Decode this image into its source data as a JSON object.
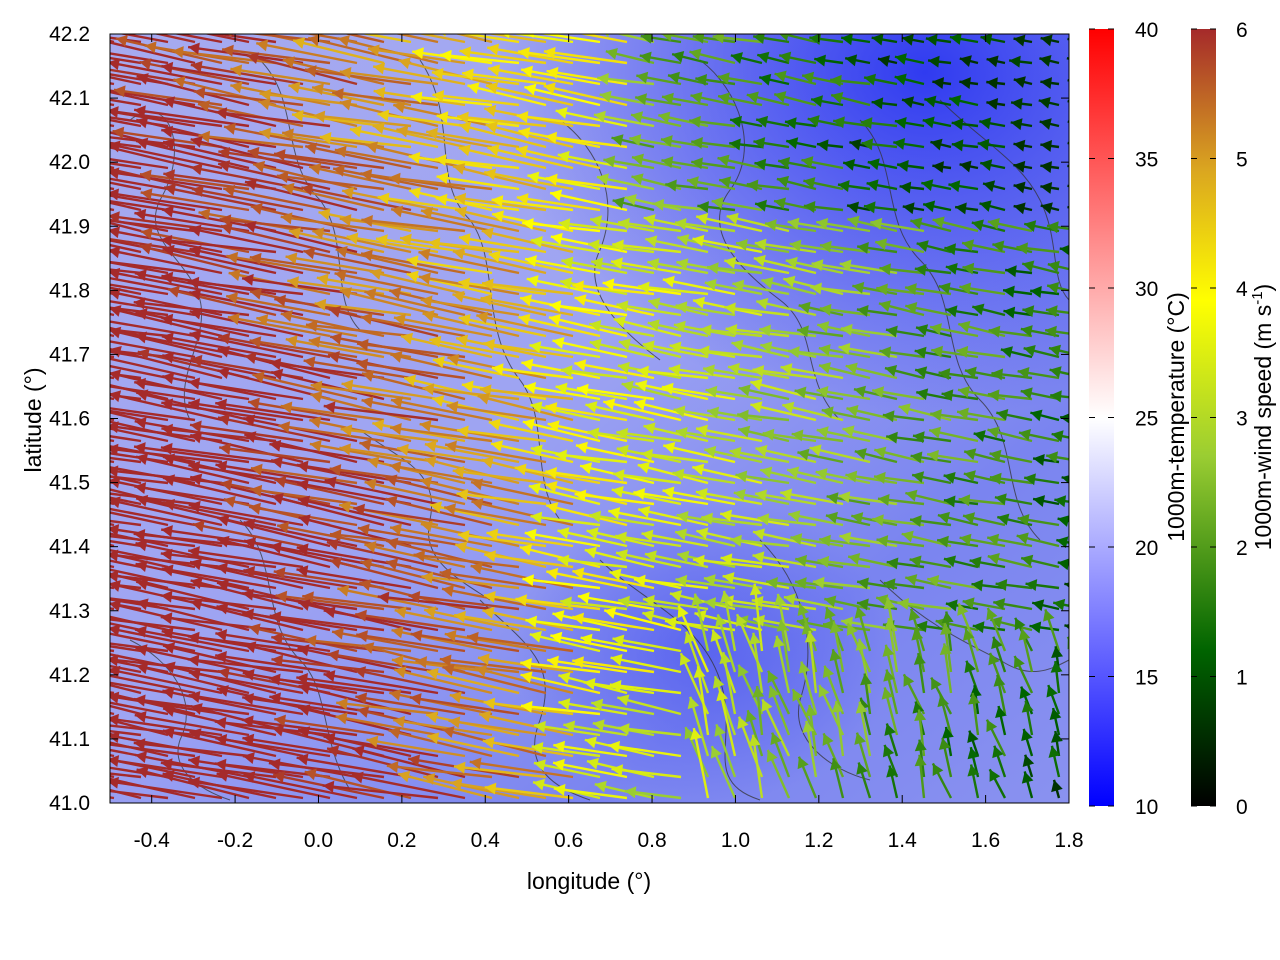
{
  "chart_data": {
    "type": "vector-field",
    "xlabel": "longitude (°)",
    "ylabel": "latitude (°)",
    "xlim": [
      -0.5,
      1.8
    ],
    "ylim": [
      41.0,
      42.2
    ],
    "xticks": [
      "-0.4",
      "-0.2",
      "0.0",
      "0.2",
      "0.4",
      "0.6",
      "0.8",
      "1.0",
      "1.2",
      "1.4",
      "1.6",
      "1.8"
    ],
    "xtick_values": [
      -0.4,
      -0.2,
      0.0,
      0.2,
      0.4,
      0.6,
      0.8,
      1.0,
      1.2,
      1.4,
      1.6,
      1.8
    ],
    "yticks": [
      "41.0",
      "41.1",
      "41.2",
      "41.3",
      "41.4",
      "41.5",
      "41.6",
      "41.7",
      "41.8",
      "41.9",
      "42.0",
      "42.1",
      "42.2"
    ],
    "ytick_values": [
      41.0,
      41.1,
      41.2,
      41.3,
      41.4,
      41.5,
      41.6,
      41.7,
      41.8,
      41.9,
      42.0,
      42.1,
      42.2
    ],
    "background": {
      "quantity": "1000m-temperature",
      "label": "1000m-temperature (°C)",
      "range": [
        10,
        40
      ],
      "ticks": [
        "10",
        "15",
        "20",
        "25",
        "30",
        "35",
        "40"
      ],
      "tick_values": [
        10,
        15,
        20,
        25,
        30,
        35,
        40
      ],
      "colors": [
        "#0000ff",
        "#ffffff",
        "#ff0000"
      ]
    },
    "arrows": {
      "quantity": "1000m-wind speed",
      "label_main": "1000m-wind speed (m s",
      "label_sup": "-1",
      "label_close": ")",
      "range": [
        0,
        6
      ],
      "ticks": [
        "0",
        "1",
        "2",
        "3",
        "4",
        "5",
        "6"
      ],
      "tick_values": [
        0,
        1,
        2,
        3,
        4,
        5,
        6
      ],
      "colors": [
        "#000000",
        "#006400",
        "#9acd32",
        "#ffff00",
        "#daa520",
        "#a52a2a"
      ]
    }
  }
}
